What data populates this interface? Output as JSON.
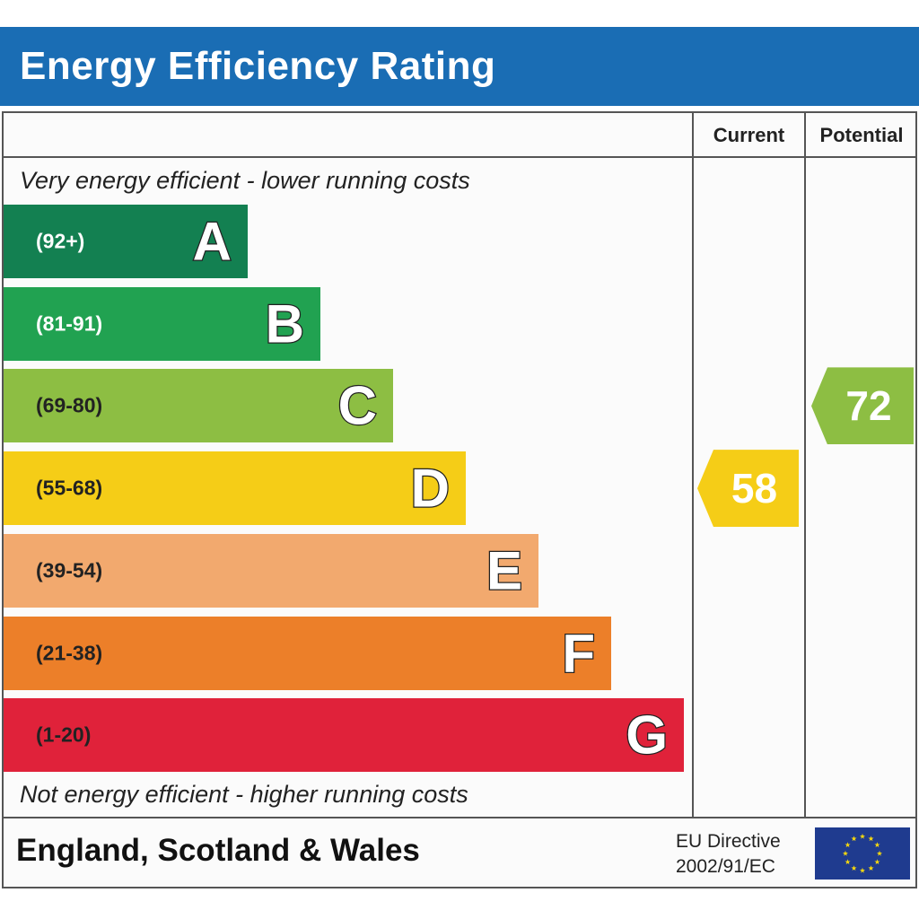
{
  "header": {
    "title": "Energy Efficiency Rating"
  },
  "columns": {
    "current": "Current",
    "potential": "Potential"
  },
  "notes": {
    "top": "Very energy efficient - lower running costs",
    "bottom": "Not energy efficient - higher running costs"
  },
  "footer": {
    "region": "England, Scotland & Wales",
    "directive_line1": "EU Directive",
    "directive_line2": "2002/91/EC",
    "flag_icon": "eu-flag-icon"
  },
  "colors": {
    "header": "#1a6db4",
    "A": "#138051",
    "B": "#21a251",
    "C": "#8dbe43",
    "D": "#f5cd17",
    "E": "#f2a96e",
    "F": "#ec7f29",
    "G": "#e0223a",
    "flag": "#1f3b8f",
    "star": "#f5d80f"
  },
  "chart_data": {
    "type": "bar",
    "categories": [
      "A",
      "B",
      "C",
      "D",
      "E",
      "F",
      "G"
    ],
    "ranges": [
      "(92+)",
      "(81-91)",
      "(69-80)",
      "(55-68)",
      "(39-54)",
      "(21-38)",
      "(1-20)"
    ],
    "range_bounds": [
      [
        92,
        100
      ],
      [
        81,
        91
      ],
      [
        69,
        80
      ],
      [
        55,
        68
      ],
      [
        39,
        54
      ],
      [
        21,
        38
      ],
      [
        1,
        20
      ]
    ],
    "current": {
      "value": 58,
      "band": "D"
    },
    "potential": {
      "value": 72,
      "band": "C"
    }
  }
}
